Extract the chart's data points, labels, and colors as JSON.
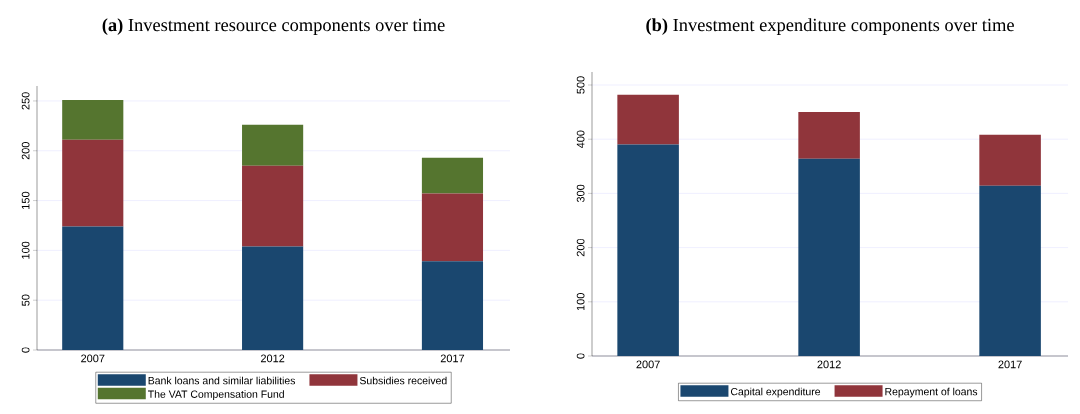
{
  "chart_data": [
    {
      "type": "bar",
      "stacked": true,
      "title": "**(a)** Investment resource components over time",
      "categories": [
        "2007",
        "2012",
        "2017"
      ],
      "series": [
        {
          "name": "Bank loans and similar liabilities",
          "color": "#1a476f",
          "values": [
            124,
            104,
            89
          ]
        },
        {
          "name": "Subsidies received",
          "color": "#90353b",
          "values": [
            87,
            81,
            68
          ]
        },
        {
          "name": "The VAT Compensation Fund",
          "color": "#55752f",
          "values": [
            40,
            41,
            36
          ]
        }
      ],
      "ylim": [
        0,
        265
      ],
      "yticks": [
        0,
        50,
        100,
        150,
        200,
        250
      ],
      "grid": "y",
      "legend": "bottom"
    },
    {
      "type": "bar",
      "stacked": true,
      "title": "**(b)** Investment expenditure components over time",
      "categories": [
        "2007",
        "2012",
        "2017"
      ],
      "series": [
        {
          "name": "Capital expenditure",
          "color": "#1a476f",
          "values": [
            390,
            364,
            314
          ]
        },
        {
          "name": "Repayment of loans",
          "color": "#90353b",
          "values": [
            92,
            86,
            94
          ]
        }
      ],
      "ylim": [
        0,
        524
      ],
      "yticks": [
        0,
        100,
        200,
        300,
        400,
        500
      ],
      "grid": "y",
      "legend": "bottom"
    }
  ]
}
